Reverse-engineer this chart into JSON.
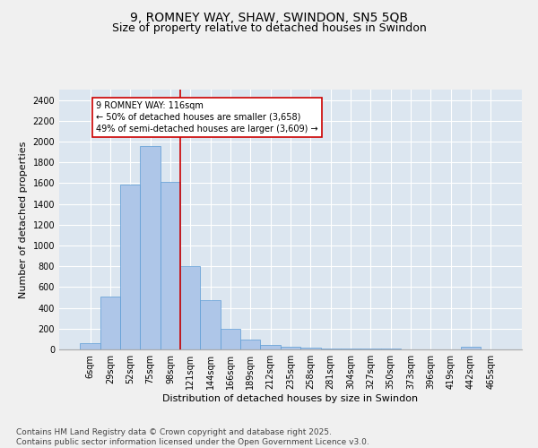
{
  "title": "9, ROMNEY WAY, SHAW, SWINDON, SN5 5QB",
  "subtitle": "Size of property relative to detached houses in Swindon",
  "xlabel": "Distribution of detached houses by size in Swindon",
  "ylabel": "Number of detached properties",
  "categories": [
    "6sqm",
    "29sqm",
    "52sqm",
    "75sqm",
    "98sqm",
    "121sqm",
    "144sqm",
    "166sqm",
    "189sqm",
    "212sqm",
    "235sqm",
    "258sqm",
    "281sqm",
    "304sqm",
    "327sqm",
    "350sqm",
    "373sqm",
    "396sqm",
    "419sqm",
    "442sqm",
    "465sqm"
  ],
  "bar_heights": [
    60,
    510,
    1590,
    1960,
    1610,
    800,
    470,
    195,
    95,
    45,
    28,
    15,
    10,
    10,
    8,
    5,
    3,
    3,
    1,
    25,
    3
  ],
  "bar_color": "#aec6e8",
  "bar_edge_color": "#5b9bd5",
  "background_color": "#dce6f0",
  "grid_color": "#ffffff",
  "annotation_text": "9 ROMNEY WAY: 116sqm\n← 50% of detached houses are smaller (3,658)\n49% of semi-detached houses are larger (3,609) →",
  "vline_x_index": 4.5,
  "vline_color": "#cc0000",
  "annotation_box_edge": "#cc0000",
  "ylim": [
    0,
    2500
  ],
  "yticks": [
    0,
    200,
    400,
    600,
    800,
    1000,
    1200,
    1400,
    1600,
    1800,
    2000,
    2200,
    2400
  ],
  "footer": "Contains HM Land Registry data © Crown copyright and database right 2025.\nContains public sector information licensed under the Open Government Licence v3.0.",
  "title_fontsize": 10,
  "subtitle_fontsize": 9,
  "axis_label_fontsize": 8,
  "tick_fontsize": 7,
  "annotation_fontsize": 7,
  "footer_fontsize": 6.5
}
